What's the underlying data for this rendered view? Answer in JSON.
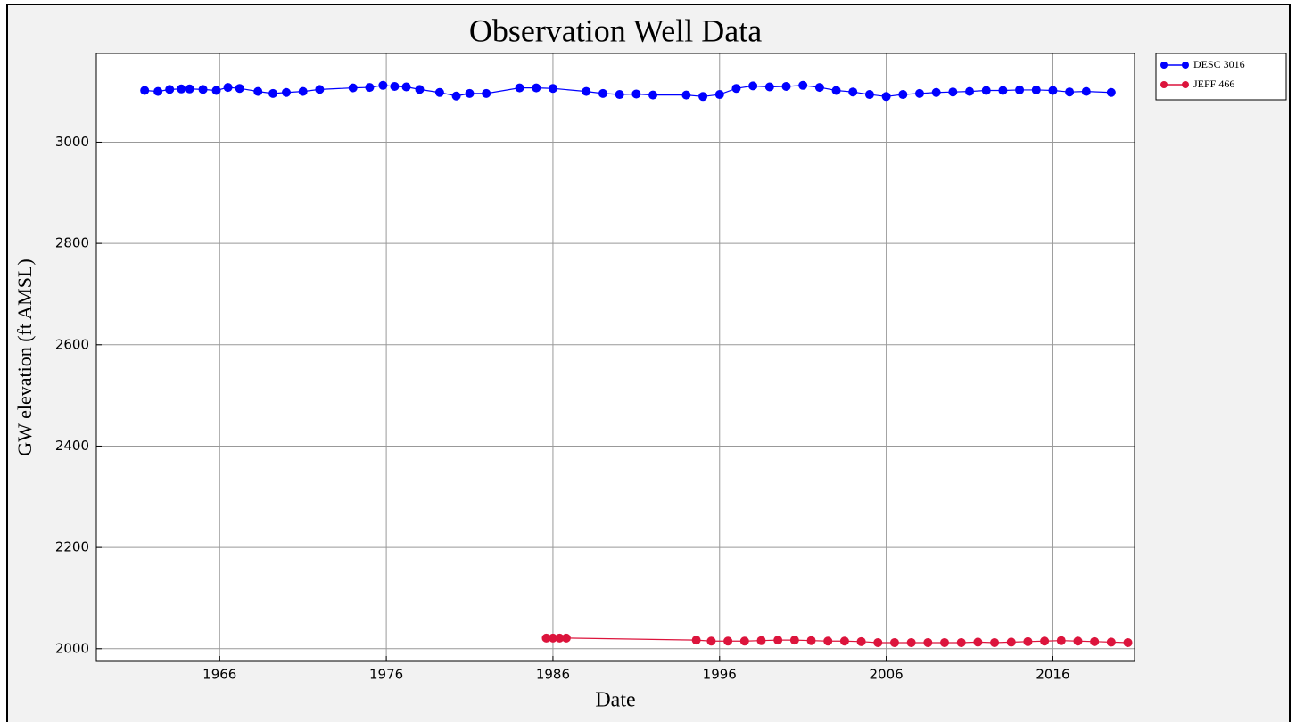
{
  "chart_data": {
    "type": "line",
    "title": "Observation Well Data",
    "x_label": "Date",
    "y_label": "GW elevation (ft AMSL)",
    "xlim": [
      1958.6,
      2020.9
    ],
    "xticks": [
      1966,
      1976,
      1986,
      1996,
      2006,
      2016
    ],
    "ylim": [
      1975,
      3175
    ],
    "yticks": [
      2000,
      2200,
      2400,
      2600,
      2800,
      3000
    ],
    "grid": true,
    "legend": "outside-upper-right",
    "series": [
      {
        "name": "DESC 3016",
        "color": "#0000ff",
        "x": [
          1961.5,
          1962.3,
          1963,
          1963.7,
          1964.2,
          1965,
          1965.8,
          1966.5,
          1967.2,
          1968.3,
          1969.2,
          1970,
          1971,
          1972,
          1974,
          1975,
          1975.8,
          1976.5,
          1977.2,
          1978,
          1979.2,
          1980.2,
          1981,
          1982,
          1984,
          1985,
          1986,
          1988,
          1989,
          1990,
          1991,
          1992,
          1994,
          1995,
          1996,
          1997,
          1998,
          1999,
          2000,
          2001,
          2002,
          2003,
          2004,
          2005,
          2006,
          2007,
          2008,
          2009,
          2010,
          2011,
          2012,
          2013,
          2014,
          2015,
          2016,
          2017,
          2018,
          2019.5
        ],
        "values": [
          3102,
          3100,
          3104,
          3105,
          3105,
          3104,
          3102,
          3108,
          3106,
          3100,
          3096,
          3098,
          3100,
          3104,
          3107,
          3108,
          3112,
          3110,
          3109,
          3104,
          3098,
          3091,
          3096,
          3096,
          3107,
          3107,
          3106,
          3100,
          3096,
          3094,
          3095,
          3093,
          3093,
          3090,
          3094,
          3106,
          3111,
          3109,
          3110,
          3112,
          3108,
          3102,
          3099,
          3094,
          3090,
          3094,
          3096,
          3098,
          3099,
          3100,
          3102,
          3102,
          3103,
          3103,
          3102,
          3099,
          3100,
          3098
        ]
      },
      {
        "name": "JEFF 466",
        "color": "#dc143c",
        "x": [
          1985.6,
          1986,
          1986.4,
          1986.8,
          1994.6,
          1995.5,
          1996.5,
          1997.5,
          1998.5,
          1999.5,
          2000.5,
          2001.5,
          2002.5,
          2003.5,
          2004.5,
          2005.5,
          2006.5,
          2007.5,
          2008.5,
          2009.5,
          2010.5,
          2011.5,
          2012.5,
          2013.5,
          2014.5,
          2015.5,
          2016.5,
          2017.5,
          2018.5,
          2019.5,
          2020.5
        ],
        "values": [
          2021,
          2021,
          2021,
          2021,
          2017,
          2015,
          2015,
          2015,
          2016,
          2017,
          2017,
          2016,
          2015,
          2015,
          2014,
          2012,
          2012,
          2012,
          2012,
          2012,
          2012,
          2013,
          2012,
          2013,
          2014,
          2015,
          2016,
          2015,
          2014,
          2013,
          2012
        ]
      }
    ]
  }
}
